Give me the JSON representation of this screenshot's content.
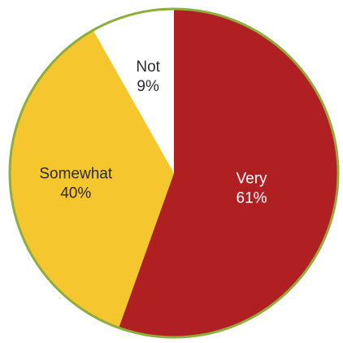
{
  "chart_data": {
    "type": "pie",
    "slices": [
      {
        "label": "Very",
        "value": 61,
        "display": "61%",
        "color": "#B01F22",
        "text_color": "#FFFFFF"
      },
      {
        "label": "Somewhat",
        "value": 40,
        "display": "40%",
        "color": "#F6C62E",
        "text_color": "#2B2B2B"
      },
      {
        "label": "Not",
        "value": 9,
        "display": "9%",
        "color": "#FFFFFF",
        "text_color": "#2B2B2B"
      }
    ],
    "start_angle_deg": 0,
    "direction": "clockwise",
    "outline_color": "#8DAE3C"
  }
}
